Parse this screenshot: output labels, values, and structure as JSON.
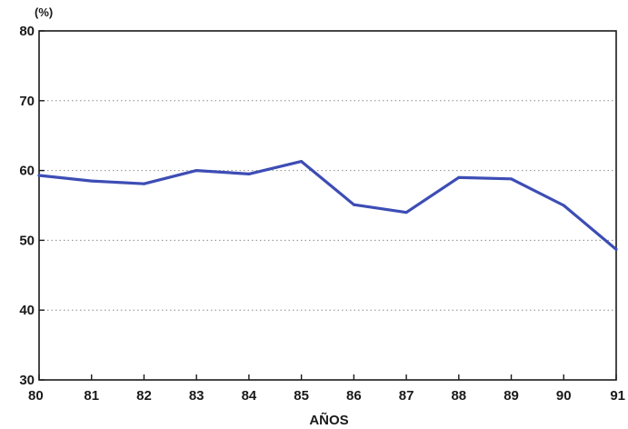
{
  "chart_data": {
    "type": "line",
    "title": "",
    "ylabel": "(%)",
    "xlabel": "AÑOS",
    "x": [
      "80",
      "81",
      "82",
      "83",
      "84",
      "85",
      "86",
      "87",
      "88",
      "89",
      "90",
      "91"
    ],
    "series": [
      {
        "values": [
          59.3,
          58.5,
          58.1,
          60.0,
          59.5,
          61.3,
          55.1,
          54.0,
          59.0,
          58.8,
          55.0,
          48.7
        ]
      }
    ],
    "ylim": [
      30,
      80
    ],
    "yticks": [
      30,
      40,
      50,
      60,
      70,
      80
    ],
    "grid": "horizontal dotted",
    "legend": "none",
    "colors": {
      "line": "#3d4db5",
      "axis": "#1a1a1a",
      "grid": "#8a8a8a"
    }
  }
}
